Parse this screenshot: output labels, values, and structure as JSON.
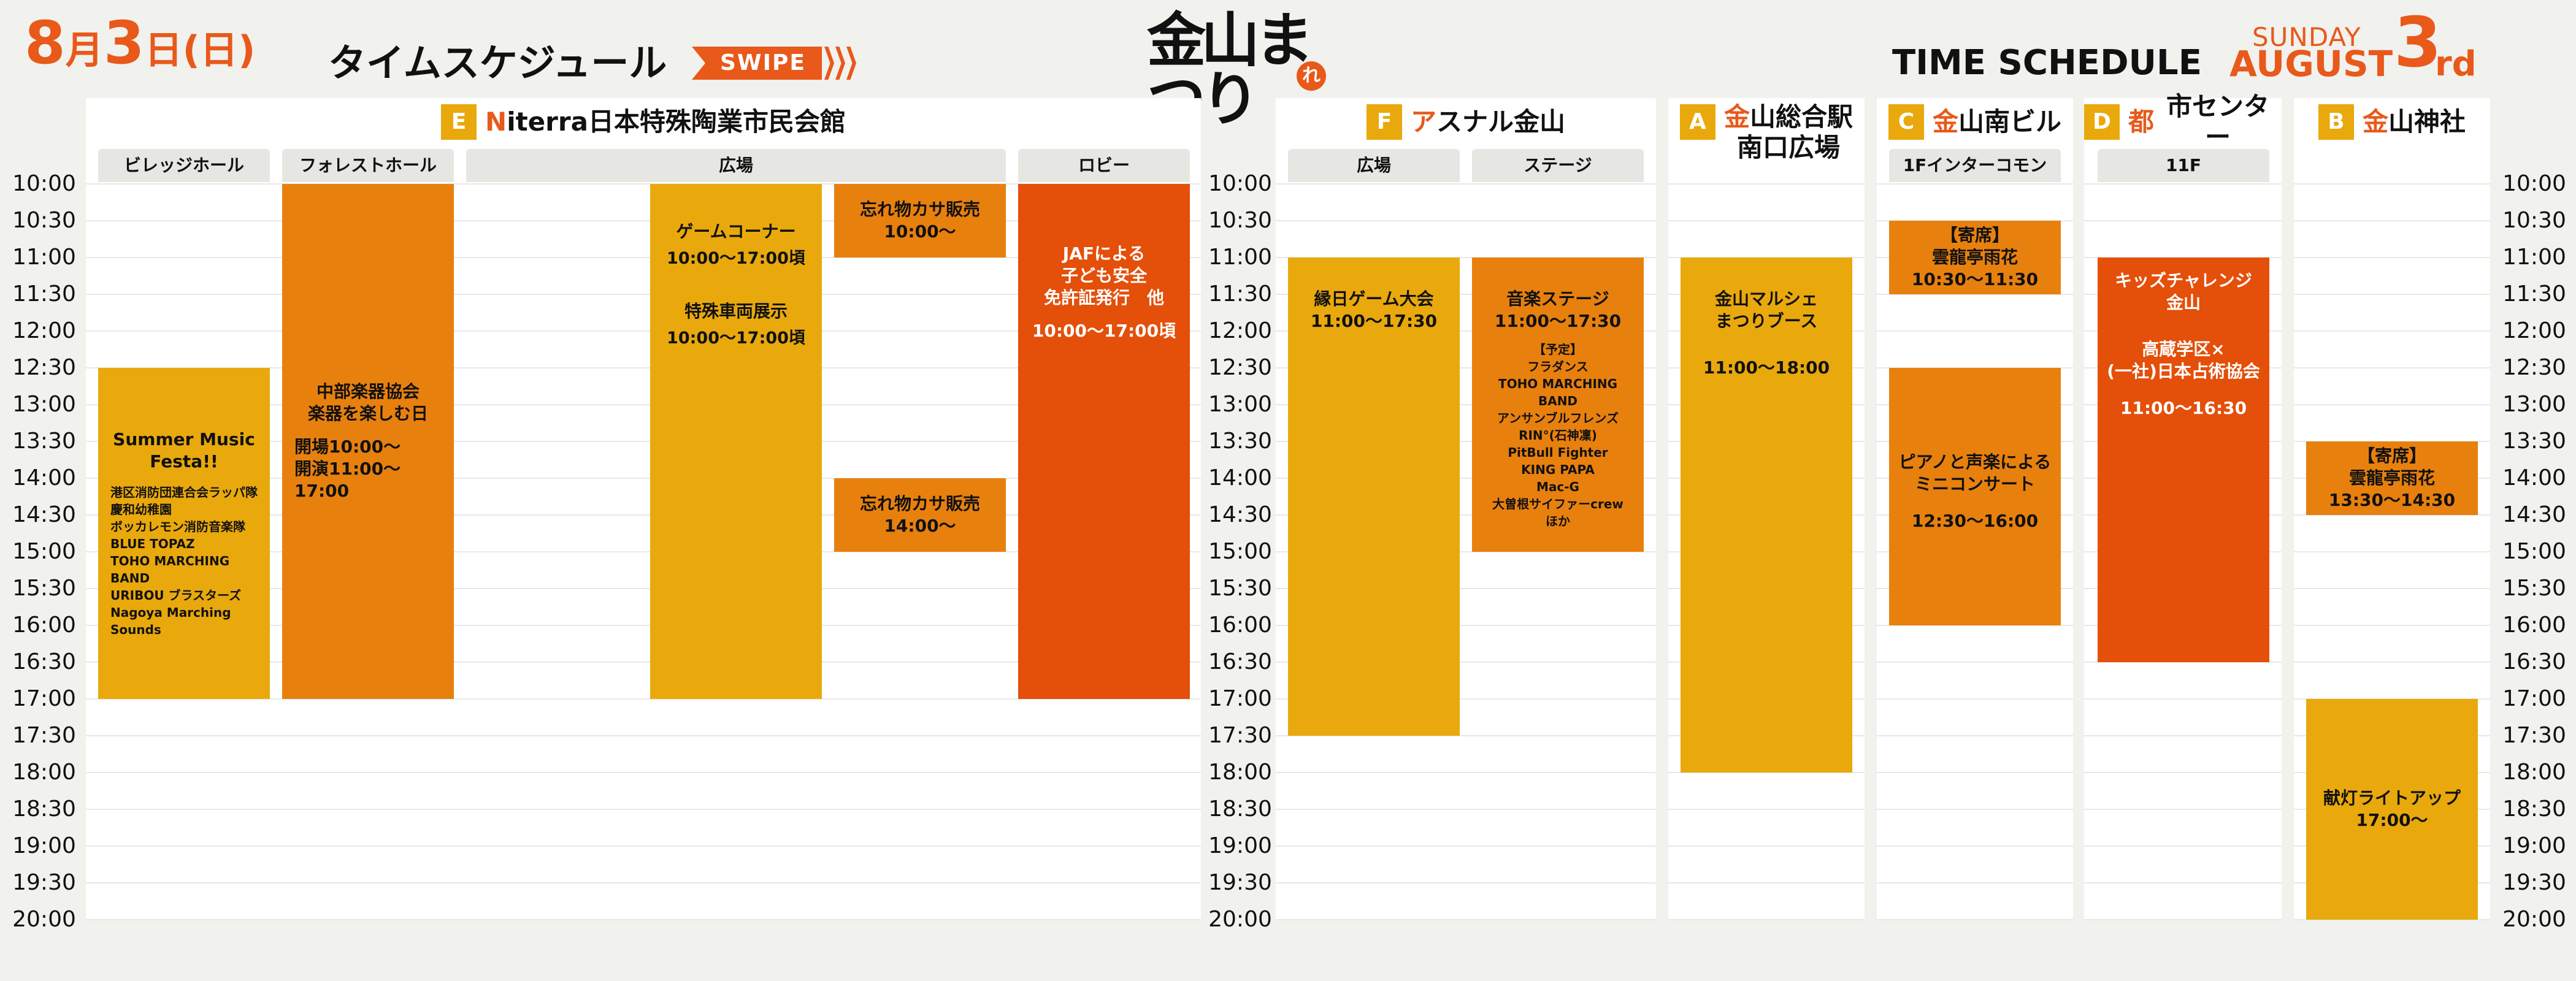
{
  "header": {
    "date_month": "8",
    "date_month_unit": "月",
    "date_day": "3",
    "date_day_unit": "日",
    "weekday": "(日)",
    "title": "タイムスケジュール",
    "swipe": "SWIPE",
    "logo_text": "金山まつり",
    "logo_mark": "れ",
    "en_title": "TIME SCHEDULE",
    "en_weekday": "SUNDAY",
    "en_month": "AUGUST",
    "en_day": "3",
    "en_suffix": "rd"
  },
  "colors": {
    "accent": "#e8591a",
    "yellow": "#e9a90c",
    "orange": "#e8800e",
    "red": "#e44f0a"
  },
  "times": [
    "10:00",
    "10:30",
    "11:00",
    "11:30",
    "12:00",
    "12:30",
    "13:00",
    "13:30",
    "14:00",
    "14:30",
    "15:00",
    "15:30",
    "16:00",
    "16:30",
    "17:00",
    "17:30",
    "18:00",
    "18:30",
    "19:00",
    "19:30",
    "20:00"
  ],
  "venues": [
    {
      "letter": "E",
      "first": "N",
      "rest": "iterra日本特殊陶業市民会館"
    },
    {
      "letter": "F",
      "first": "ア",
      "rest": "スナル金山"
    },
    {
      "letter": "A",
      "first": "金",
      "rest": "山総合駅",
      "line2": "南口広場"
    },
    {
      "letter": "C",
      "first": "金",
      "rest": "山南ビル"
    },
    {
      "letter": "D",
      "first": "都",
      "rest": "市センター"
    },
    {
      "letter": "B",
      "first": "金",
      "rest": "山神社"
    }
  ],
  "subheads": {
    "e_village": "ビレッジホール",
    "e_forest": "フォレストホール",
    "e_plaza": "広場",
    "e_lobby": "ロビー",
    "f_plaza": "広場",
    "f_stage": "ステージ",
    "c_floor": "1Fインターコモン",
    "d_floor": "11F"
  },
  "events": {
    "summer_title": "Summer Music Festa!!",
    "summer_acts": [
      "港区消防団連合会ラッパ隊",
      "慶和幼稚園",
      "ボッカレモン消防音楽隊",
      "BLUE TOPAZ",
      "TOHO MARCHING BAND",
      "URIBOU ブラスターズ",
      "Nagoya Marching Sounds"
    ],
    "forest_title1": "中部楽器協会",
    "forest_title2": "楽器を楽しむ日",
    "forest_open": "開場10:00～",
    "forest_start": "開演11:00～17:00",
    "game_title": "ゲームコーナー",
    "game_time": "10:00～17:00頃",
    "vehicle_title": "特殊車両展示",
    "vehicle_time": "10:00～17:00頃",
    "lost1_title": "忘れ物カサ販売",
    "lost1_time": "10:00～",
    "lost2_title": "忘れ物カサ販売",
    "lost2_time": "14:00～",
    "jaf_l1": "JAFによる",
    "jaf_l2": "子ども安全",
    "jaf_l3": "免許証発行　他",
    "jaf_time": "10:00～17:00頃",
    "ennichi_title": "縁日ゲーム大会",
    "ennichi_time": "11:00～17:30",
    "music_title": "音楽ステージ",
    "music_time": "11:00～17:30",
    "music_acts": [
      "【予定】",
      "フラダンス",
      "TOHO MARCHING BAND",
      "アンサンブルフレンズ",
      "RIN°(石神凜)",
      "PitBull Fighter",
      "KING PAPA",
      "Mac-G",
      "大曽根サイファーcrew",
      "ほか"
    ],
    "marche_l1": "金山マルシェ",
    "marche_l2": "まつりブース",
    "marche_time": "11:00～18:00",
    "yose1_l1": "【寄席】",
    "yose1_l2": "雲龍亭雨花",
    "yose1_time": "10:30～11:30",
    "piano_l1": "ピアノと声楽による",
    "piano_l2": "ミニコンサート",
    "piano_time": "12:30～16:00",
    "kids_l1": "キッズチャレンジ",
    "kids_l2": "金山",
    "kids_l3": "高蔵学区×",
    "kids_l4": "(一社)日本占術協会",
    "kids_time": "11:00～16:30",
    "yose2_l1": "【寄席】",
    "yose2_l2": "雲龍亭雨花",
    "yose2_time": "13:30～14:30",
    "lantern_title": "献灯ライトアップ",
    "lantern_time": "17:00～"
  }
}
